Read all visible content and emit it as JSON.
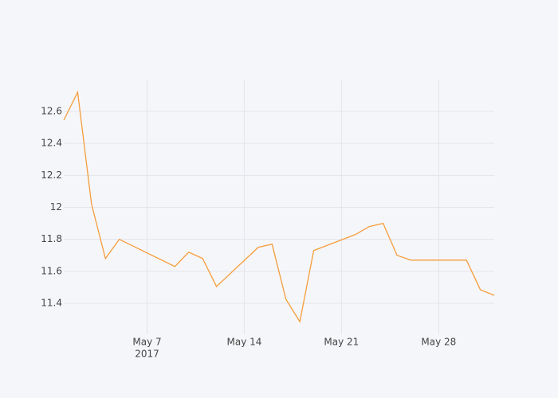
{
  "chart_data": {
    "type": "line",
    "x": [
      "2017-05-01",
      "2017-05-02",
      "2017-05-03",
      "2017-05-04",
      "2017-05-05",
      "2017-05-09",
      "2017-05-10",
      "2017-05-11",
      "2017-05-12",
      "2017-05-15",
      "2017-05-16",
      "2017-05-17",
      "2017-05-18",
      "2017-05-19",
      "2017-05-22",
      "2017-05-23",
      "2017-05-24",
      "2017-05-25",
      "2017-05-26",
      "2017-05-30",
      "2017-05-31",
      "2017-06-01"
    ],
    "series": [
      {
        "color": "#f59d3c",
        "values": [
          12.545,
          12.72,
          12.02,
          11.68,
          11.8,
          11.63,
          11.72,
          11.68,
          11.505,
          11.75,
          11.77,
          11.425,
          11.285,
          11.73,
          11.83,
          11.88,
          11.9,
          11.7,
          11.67,
          11.67,
          11.485,
          11.45
        ]
      }
    ],
    "xlim": [
      "2017-05-01",
      "2017-06-01"
    ],
    "xticks": [
      {
        "value": "2017-05-07",
        "label": "May 7"
      },
      {
        "value": "2017-05-14",
        "label": "May 14"
      },
      {
        "value": "2017-05-21",
        "label": "May 21"
      },
      {
        "value": "2017-05-28",
        "label": "May 28"
      }
    ],
    "x_year_label": "2017",
    "ylim": [
      11.206,
      12.799
    ],
    "yticks": [
      11.4,
      11.6,
      11.8,
      12,
      12.2,
      12.4,
      12.6
    ],
    "grid": true
  }
}
